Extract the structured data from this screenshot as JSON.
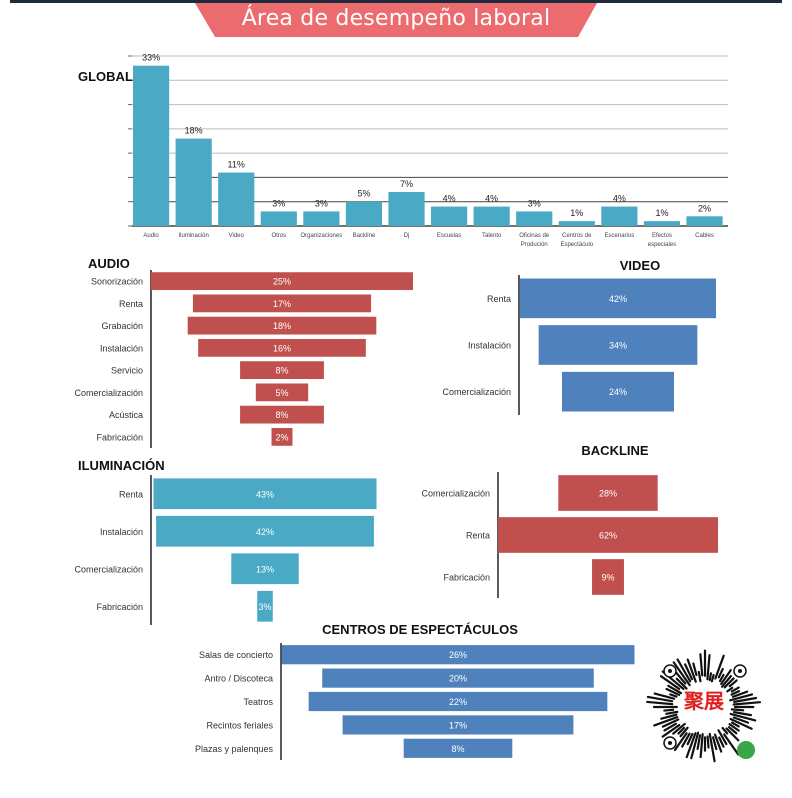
{
  "header": {
    "title": "Área de desempeño laboral",
    "banner_color": "#ec6b6f"
  },
  "chart_data": [
    {
      "id": "global",
      "type": "bar",
      "title": "GLOBAL",
      "categories": [
        "Audio",
        "Iluminación",
        "Video",
        "Otros",
        "Organizaciones",
        "Backline",
        "Dj",
        "Escuelas",
        "Talento",
        "Oficinas de Produción",
        "Centros de Espectáculo",
        "Escenarios",
        "Efectos especiales",
        "Cables"
      ],
      "values": [
        33,
        18,
        11,
        3,
        3,
        5,
        7,
        4,
        4,
        3,
        1,
        4,
        1,
        2
      ],
      "data_labels": [
        "33%",
        "18%",
        "11%",
        "3%",
        "3%",
        "5%",
        "7%",
        "4%",
        "4%",
        "3%",
        "1%",
        "4%",
        "1%",
        "2%"
      ],
      "ylim": [
        0,
        35
      ],
      "grid": true,
      "xlabel": "",
      "ylabel": "",
      "color": "#4aaac6"
    },
    {
      "id": "audio",
      "type": "bar",
      "orientation": "funnel",
      "title": "AUDIO",
      "categories": [
        "Sonorización",
        "Renta",
        "Grabación",
        "Instalación",
        "Servicio",
        "Comercialización",
        "Acústica",
        "Fabricación"
      ],
      "values": [
        25,
        17,
        18,
        16,
        8,
        5,
        8,
        2
      ],
      "data_labels": [
        "25%",
        "17%",
        "18%",
        "16%",
        "8%",
        "5%",
        "8%",
        "2%"
      ],
      "color": "#c0504d"
    },
    {
      "id": "video",
      "type": "bar",
      "orientation": "funnel",
      "title": "VIDEO",
      "categories": [
        "Renta",
        "Instalación",
        "Comercialización"
      ],
      "values": [
        42,
        34,
        24
      ],
      "data_labels": [
        "42%",
        "34%",
        "24%"
      ],
      "color": "#4f81bd"
    },
    {
      "id": "iluminacion",
      "type": "bar",
      "orientation": "funnel",
      "title": "ILUMINACIÓN",
      "categories": [
        "Renta",
        "Instalación",
        "Comercialización",
        "Fabricación"
      ],
      "values": [
        43,
        42,
        13,
        3
      ],
      "data_labels": [
        "43%",
        "42%",
        "13%",
        "3%"
      ],
      "color": "#4aaac6"
    },
    {
      "id": "backline",
      "type": "bar",
      "orientation": "funnel",
      "title": "BACKLINE",
      "categories": [
        "Comercialización",
        "Renta",
        "Fabricación"
      ],
      "values": [
        28,
        62,
        9
      ],
      "data_labels": [
        "28%",
        "62%",
        "9%"
      ],
      "color": "#c0504d"
    },
    {
      "id": "centros",
      "type": "bar",
      "orientation": "funnel",
      "title": "CENTROS DE ESPECTÁCULOS",
      "categories": [
        "Salas de concierto",
        "Antro / Discoteca",
        "Teatros",
        "Recintos feriales",
        "Plazas y palenques"
      ],
      "values": [
        26,
        20,
        22,
        17,
        8
      ],
      "data_labels": [
        "26%",
        "20%",
        "22%",
        "17%",
        "8%"
      ],
      "color": "#4f81bd"
    }
  ],
  "qr": {
    "center_text": "聚展",
    "watermark": "聚展"
  }
}
